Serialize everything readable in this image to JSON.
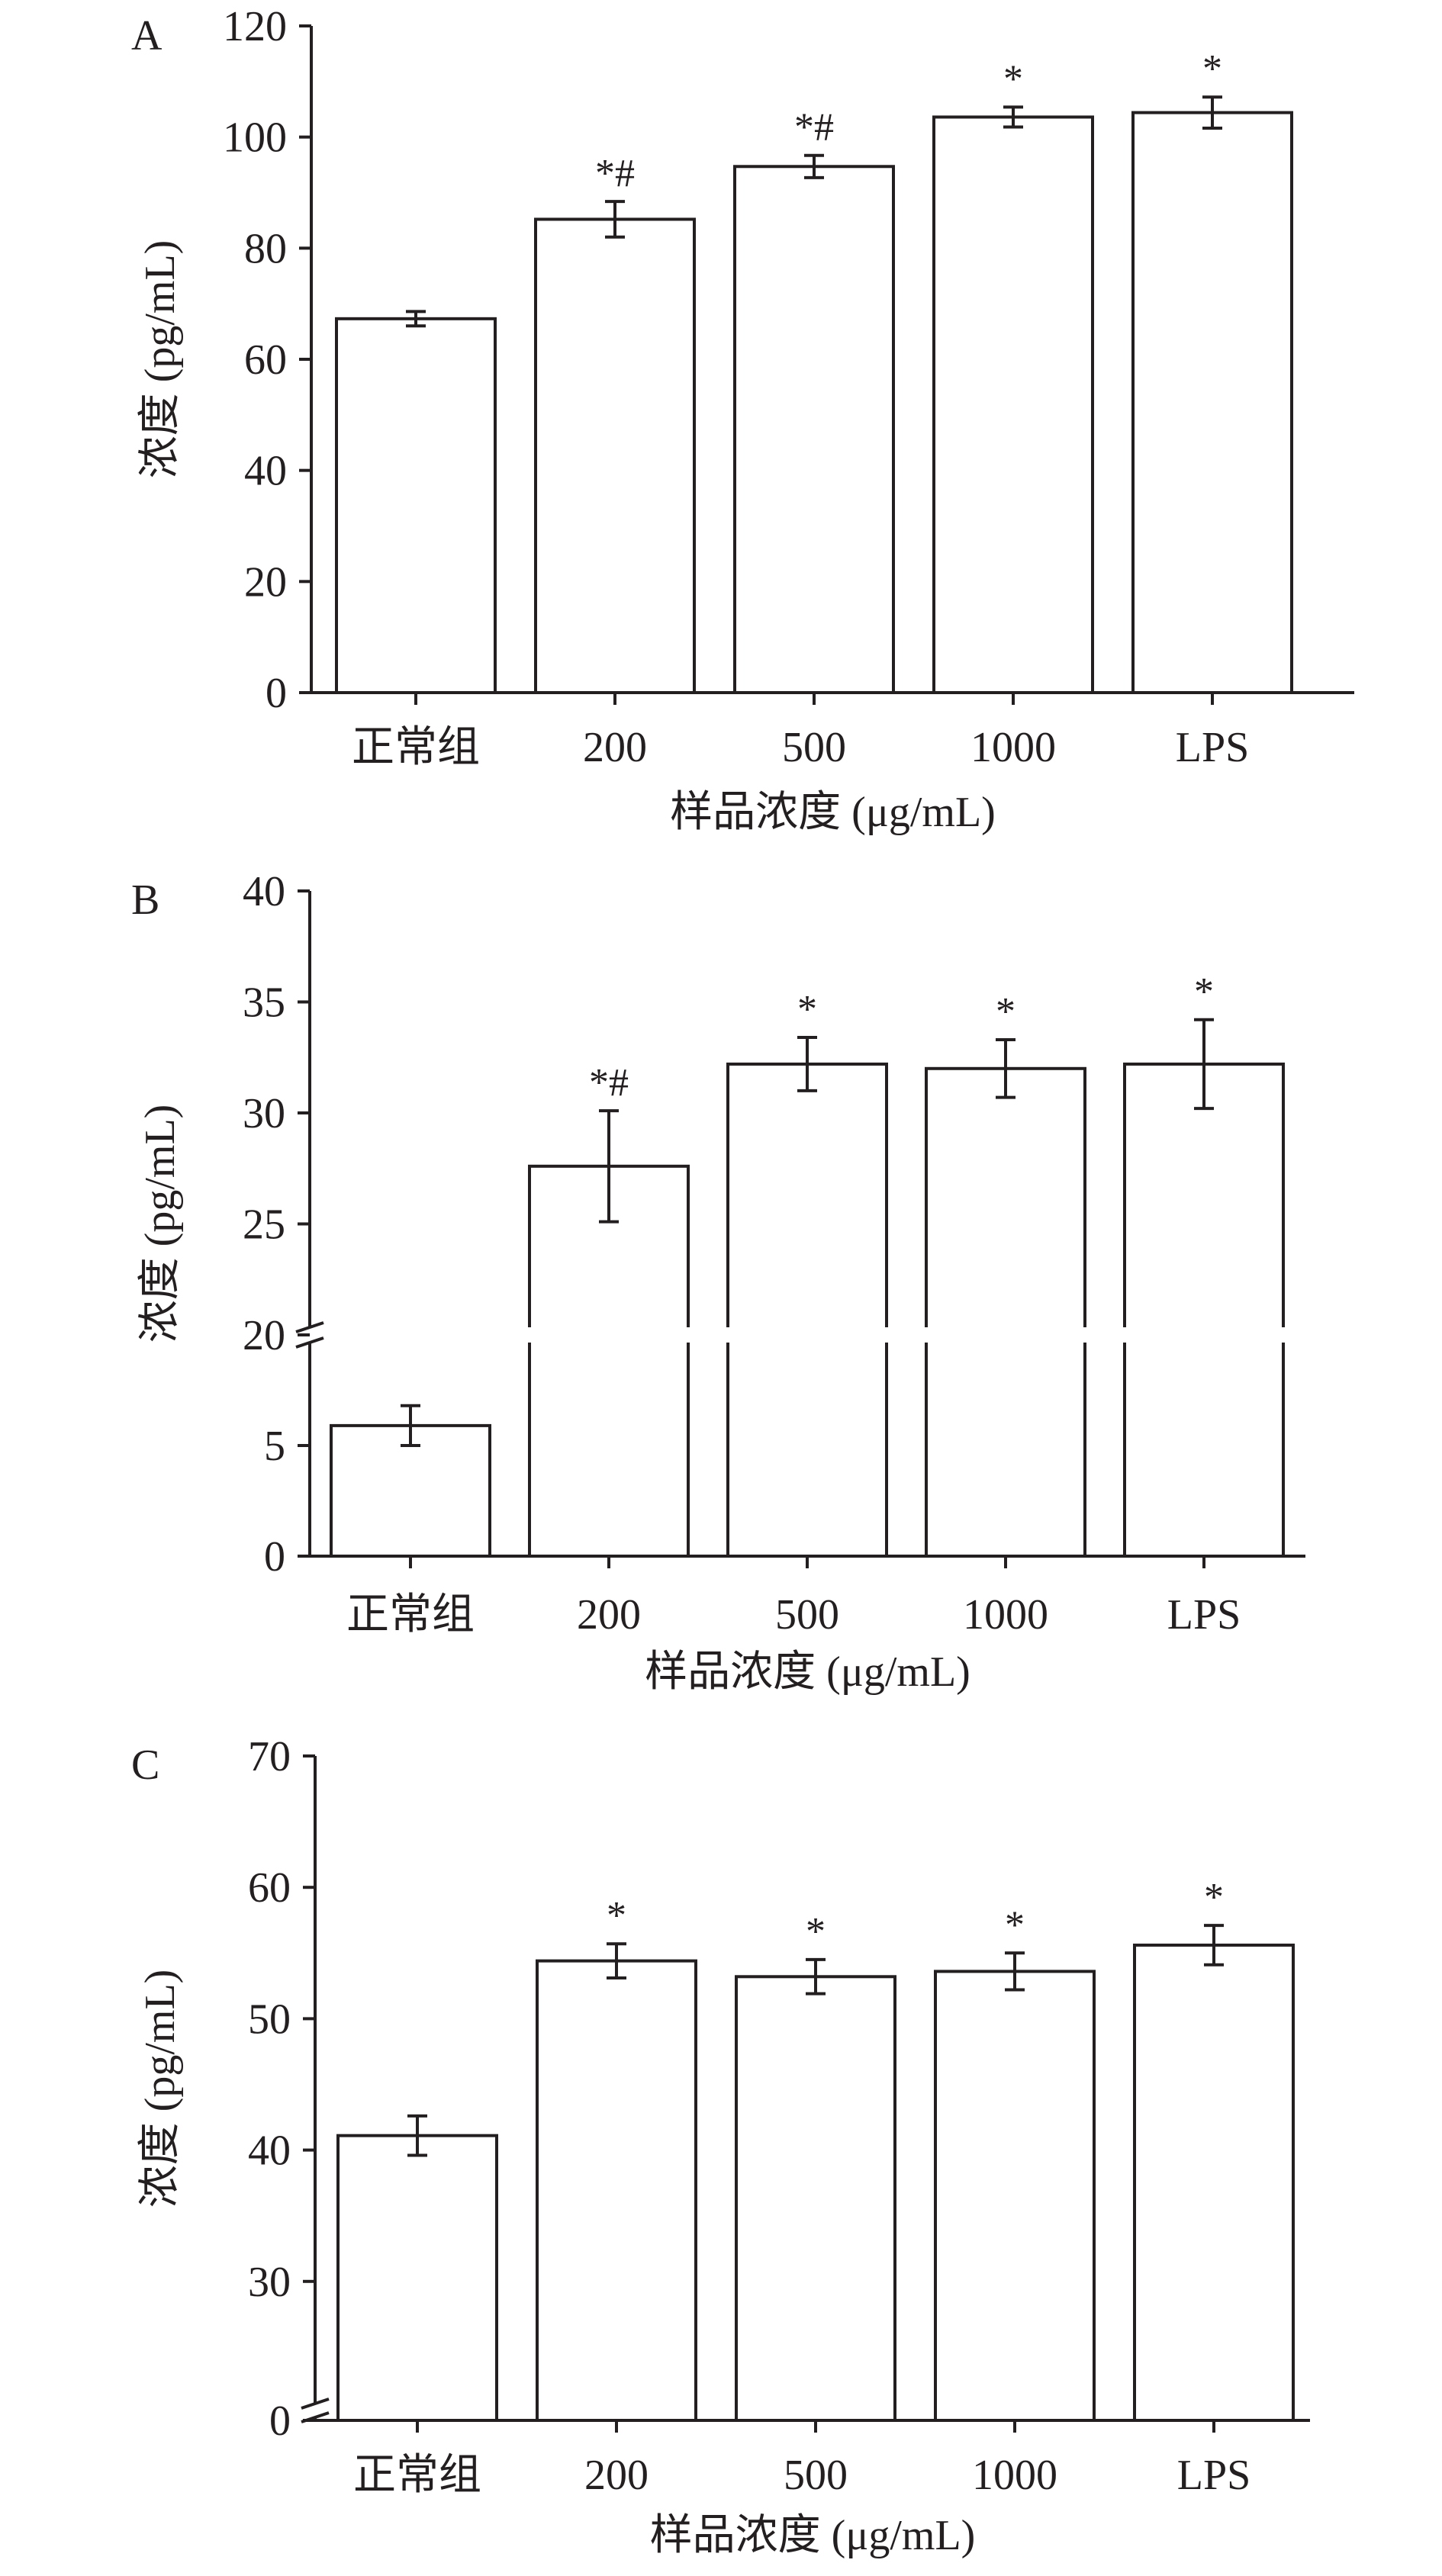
{
  "chart_data": [
    {
      "type": "bar",
      "panel_label": "A",
      "categories": [
        "正常组",
        "200",
        "500",
        "1000",
        "LPS"
      ],
      "values": [
        67.3,
        85.2,
        94.7,
        103.6,
        104.4
      ],
      "errors": [
        1.3,
        3.2,
        2.0,
        1.8,
        2.8
      ],
      "annotations": [
        "",
        "*#",
        "*#",
        "*",
        "*"
      ],
      "xlabel": "样品浓度 (μg/mL)",
      "ylabel": "浓度 (pg/mL)",
      "ylim": [
        0,
        120
      ],
      "yticks": [
        "0",
        "20",
        "40",
        "60",
        "80",
        "100",
        "120"
      ],
      "axis_break": false
    },
    {
      "type": "bar",
      "panel_label": "B",
      "categories": [
        "正常组",
        "200",
        "500",
        "1000",
        "LPS"
      ],
      "values": [
        5.9,
        27.6,
        32.2,
        32.0,
        32.2
      ],
      "errors": [
        0.9,
        2.5,
        1.2,
        1.3,
        2.0
      ],
      "annotations": [
        "",
        "*#",
        "*",
        "*",
        "*"
      ],
      "xlabel": "样品浓度 (μg/mL)",
      "ylabel": "浓度 (pg/mL)",
      "ylim": [
        0,
        40
      ],
      "yticks": [
        "0",
        "5",
        "20",
        "25",
        "30",
        "35",
        "40"
      ],
      "axis_break": true,
      "break_range": [
        10,
        20
      ]
    },
    {
      "type": "bar",
      "panel_label": "C",
      "categories": [
        "正常组",
        "200",
        "500",
        "1000",
        "LPS"
      ],
      "values": [
        41.1,
        54.4,
        53.2,
        53.6,
        55.6
      ],
      "errors": [
        1.5,
        1.3,
        1.3,
        1.4,
        1.5
      ],
      "annotations": [
        "",
        "*",
        "*",
        "*",
        "*"
      ],
      "xlabel": "样品浓度 (μg/mL)",
      "ylabel": "浓度 (pg/mL)",
      "ylim": [
        0,
        70
      ],
      "yticks": [
        "0",
        "30",
        "40",
        "50",
        "60",
        "70"
      ],
      "axis_break": true,
      "break_range": [
        0,
        25
      ]
    }
  ]
}
